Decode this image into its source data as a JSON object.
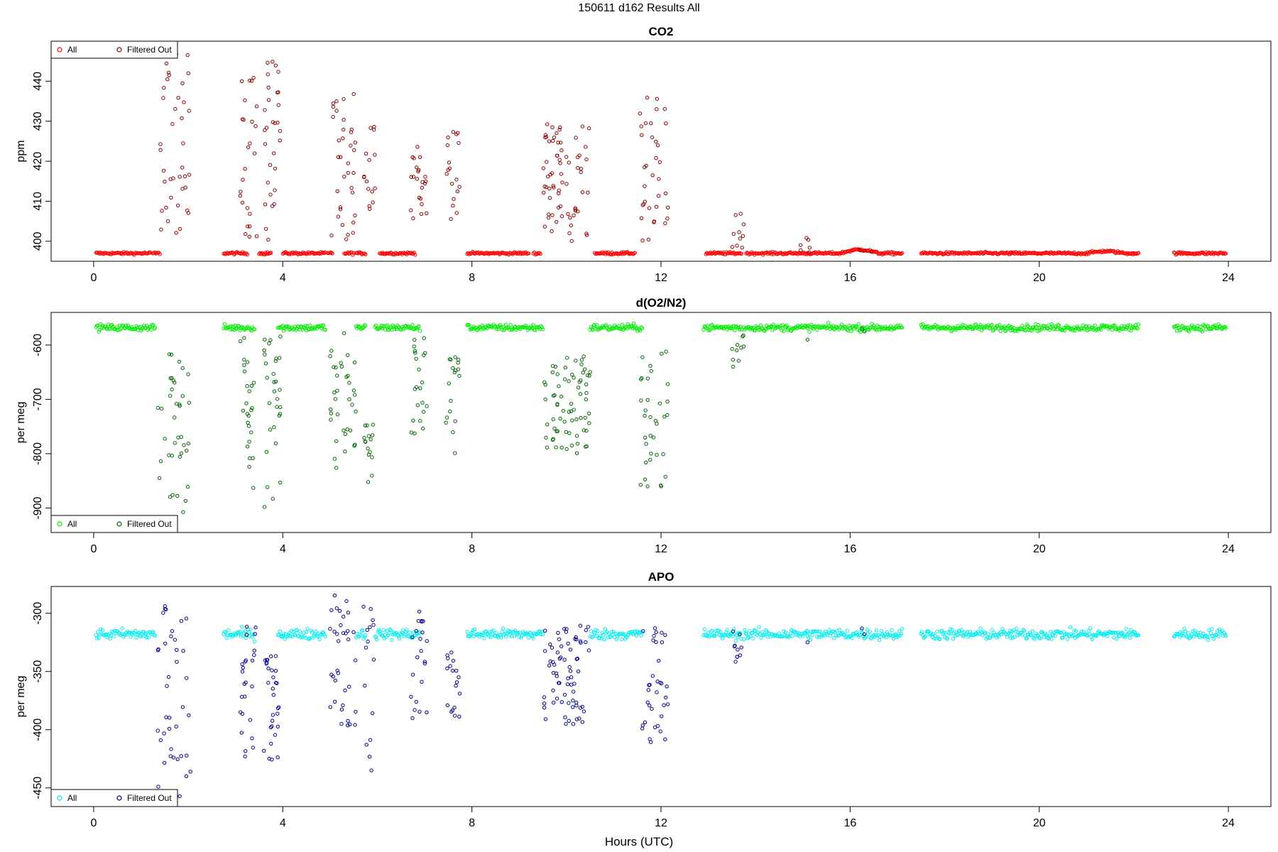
{
  "figure": {
    "title": "150611   d162   Results All",
    "xlabel": "Hours (UTC)"
  },
  "chart_data": [
    {
      "type": "scatter",
      "title": "CO2",
      "ylabel": "ppm",
      "xlim": [
        -0.9,
        24.9
      ],
      "ylim": [
        395,
        450
      ],
      "xticks": [
        0,
        4,
        8,
        12,
        16,
        20,
        24
      ],
      "yticks": [
        400,
        410,
        420,
        430,
        440
      ],
      "legend": {
        "position": "top-left",
        "entries": [
          "All",
          "Filtered Out"
        ]
      },
      "colors": {
        "all": "#ff0000",
        "filtered": "#8b0000"
      },
      "baseline": {
        "level": 397,
        "noise": 0.3,
        "segments": [
          [
            0.05,
            1.2
          ],
          [
            1.25,
            1.4
          ],
          [
            2.75,
            3.25
          ],
          [
            3.5,
            3.75
          ],
          [
            4.0,
            4.9
          ],
          [
            4.95,
            5.05
          ],
          [
            5.3,
            5.5
          ],
          [
            5.55,
            5.75
          ],
          [
            6.05,
            6.8
          ],
          [
            7.9,
            9.2
          ],
          [
            9.3,
            9.45
          ],
          [
            10.6,
            11.45
          ],
          [
            12.95,
            13.7
          ],
          [
            13.8,
            15.1
          ],
          [
            15.1,
            17.1
          ],
          [
            17.5,
            19.4
          ],
          [
            19.4,
            22.1
          ],
          [
            22.85,
            23.95
          ]
        ],
        "gap_ranges": []
      },
      "bumps": [
        [
          16.2,
          0.8,
          0.9
        ],
        [
          21.4,
          0.8,
          0.5
        ]
      ],
      "bursts": [
        {
          "t0": 1.35,
          "t1": 2.05,
          "n": 40,
          "lo": 400,
          "hi": 448
        },
        {
          "t0": 3.1,
          "t1": 3.45,
          "n": 25,
          "lo": 398,
          "hi": 441
        },
        {
          "t0": 3.6,
          "t1": 3.95,
          "n": 30,
          "lo": 400,
          "hi": 445
        },
        {
          "t0": 5.0,
          "t1": 5.55,
          "n": 35,
          "lo": 399,
          "hi": 437
        },
        {
          "t0": 5.7,
          "t1": 5.95,
          "n": 15,
          "lo": 407,
          "hi": 433
        },
        {
          "t0": 6.7,
          "t1": 7.05,
          "n": 22,
          "lo": 399,
          "hi": 424
        },
        {
          "t0": 7.45,
          "t1": 7.75,
          "n": 18,
          "lo": 401,
          "hi": 428
        },
        {
          "t0": 9.5,
          "t1": 10.5,
          "n": 70,
          "lo": 400,
          "hi": 430
        },
        {
          "t0": 11.55,
          "t1": 12.15,
          "n": 35,
          "lo": 400,
          "hi": 436
        },
        {
          "t0": 13.5,
          "t1": 13.75,
          "n": 10,
          "lo": 398,
          "hi": 409
        },
        {
          "t0": 14.95,
          "t1": 15.15,
          "n": 6,
          "lo": 397,
          "hi": 401
        }
      ],
      "filtered_points": [
        [
          16.2,
          397.8
        ],
        [
          16.3,
          397.7
        ],
        [
          16.45,
          397.5
        ]
      ]
    },
    {
      "type": "scatter",
      "title": "d(O2/N2)",
      "ylabel": "per meg",
      "xlim": [
        -0.9,
        24.9
      ],
      "ylim": [
        -945,
        -540
      ],
      "xticks": [
        0,
        4,
        8,
        12,
        16,
        20,
        24
      ],
      "yticks": [
        -600,
        -700,
        -800,
        -900
      ],
      "legend": {
        "position": "bottom-left",
        "entries": [
          "All",
          "Filtered Out"
        ]
      },
      "colors": {
        "all": "#00ee00",
        "filtered": "#006400"
      },
      "baseline": {
        "level": -568,
        "noise": 6,
        "segments": [
          [
            0.05,
            1.3
          ],
          [
            2.75,
            3.4
          ],
          [
            3.9,
            4.9
          ],
          [
            5.55,
            5.75
          ],
          [
            5.95,
            6.9
          ],
          [
            7.9,
            9.5
          ],
          [
            10.5,
            11.6
          ],
          [
            12.9,
            13.7
          ],
          [
            13.75,
            15.1
          ],
          [
            15.1,
            17.1
          ],
          [
            17.5,
            19.4
          ],
          [
            19.4,
            22.1
          ],
          [
            22.85,
            23.95
          ]
        ]
      },
      "bumps": [],
      "bursts": [
        {
          "t0": 1.35,
          "t1": 2.05,
          "n": 40,
          "lo": -935,
          "hi": -600
        },
        {
          "t0": 3.1,
          "t1": 3.45,
          "n": 25,
          "lo": -880,
          "hi": -575
        },
        {
          "t0": 3.6,
          "t1": 3.95,
          "n": 30,
          "lo": -912,
          "hi": -580
        },
        {
          "t0": 5.0,
          "t1": 5.55,
          "n": 35,
          "lo": -860,
          "hi": -575
        },
        {
          "t0": 5.7,
          "t1": 5.95,
          "n": 15,
          "lo": -855,
          "hi": -745
        },
        {
          "t0": 6.7,
          "t1": 7.05,
          "n": 22,
          "lo": -780,
          "hi": -580
        },
        {
          "t0": 7.45,
          "t1": 7.75,
          "n": 18,
          "lo": -805,
          "hi": -620
        },
        {
          "t0": 9.5,
          "t1": 10.5,
          "n": 70,
          "lo": -800,
          "hi": -620
        },
        {
          "t0": 11.55,
          "t1": 12.15,
          "n": 35,
          "lo": -862,
          "hi": -605
        },
        {
          "t0": 13.5,
          "t1": 13.75,
          "n": 10,
          "lo": -650,
          "hi": -575
        }
      ],
      "filtered_points": [
        [
          16.25,
          -570
        ],
        [
          16.3,
          -575
        ],
        [
          15.1,
          -590
        ]
      ]
    },
    {
      "type": "scatter",
      "title": "APO",
      "ylabel": "per meg",
      "xlim": [
        -0.9,
        24.9
      ],
      "ylim": [
        -466,
        -277
      ],
      "xticks": [
        0,
        4,
        8,
        12,
        16,
        20,
        24
      ],
      "yticks": [
        -300,
        -350,
        -400,
        -450
      ],
      "legend": {
        "position": "bottom-left",
        "entries": [
          "All",
          "Filtered Out"
        ]
      },
      "colors": {
        "all": "#00eeee",
        "filtered": "#00008b"
      },
      "baseline": {
        "level": -318,
        "noise": 4.5,
        "segments": [
          [
            0.05,
            1.3
          ],
          [
            2.75,
            3.4
          ],
          [
            3.9,
            4.9
          ],
          [
            5.55,
            5.75
          ],
          [
            5.95,
            6.9
          ],
          [
            7.9,
            9.5
          ],
          [
            10.5,
            11.6
          ],
          [
            12.9,
            13.7
          ],
          [
            13.75,
            15.1
          ],
          [
            15.1,
            17.1
          ],
          [
            17.5,
            19.4
          ],
          [
            19.4,
            22.1
          ],
          [
            22.85,
            23.95
          ]
        ]
      },
      "bumps": [],
      "bursts": [
        {
          "t0": 1.35,
          "t1": 2.05,
          "n": 40,
          "lo": -460,
          "hi": -290
        },
        {
          "t0": 3.1,
          "t1": 3.45,
          "n": 25,
          "lo": -425,
          "hi": -305
        },
        {
          "t0": 3.6,
          "t1": 3.95,
          "n": 30,
          "lo": -428,
          "hi": -325
        },
        {
          "t0": 5.0,
          "t1": 5.55,
          "n": 35,
          "lo": -405,
          "hi": -280
        },
        {
          "t0": 5.7,
          "t1": 5.95,
          "n": 15,
          "lo": -440,
          "hi": -290
        },
        {
          "t0": 6.7,
          "t1": 7.05,
          "n": 22,
          "lo": -393,
          "hi": -298
        },
        {
          "t0": 7.45,
          "t1": 7.75,
          "n": 18,
          "lo": -393,
          "hi": -330
        },
        {
          "t0": 9.5,
          "t1": 10.5,
          "n": 70,
          "lo": -397,
          "hi": -310
        },
        {
          "t0": 11.55,
          "t1": 12.15,
          "n": 35,
          "lo": -417,
          "hi": -310
        },
        {
          "t0": 13.5,
          "t1": 13.75,
          "n": 10,
          "lo": -345,
          "hi": -315
        }
      ],
      "filtered_points": [
        [
          16.25,
          -313
        ],
        [
          16.3,
          -318
        ],
        [
          15.1,
          -325
        ]
      ]
    }
  ]
}
